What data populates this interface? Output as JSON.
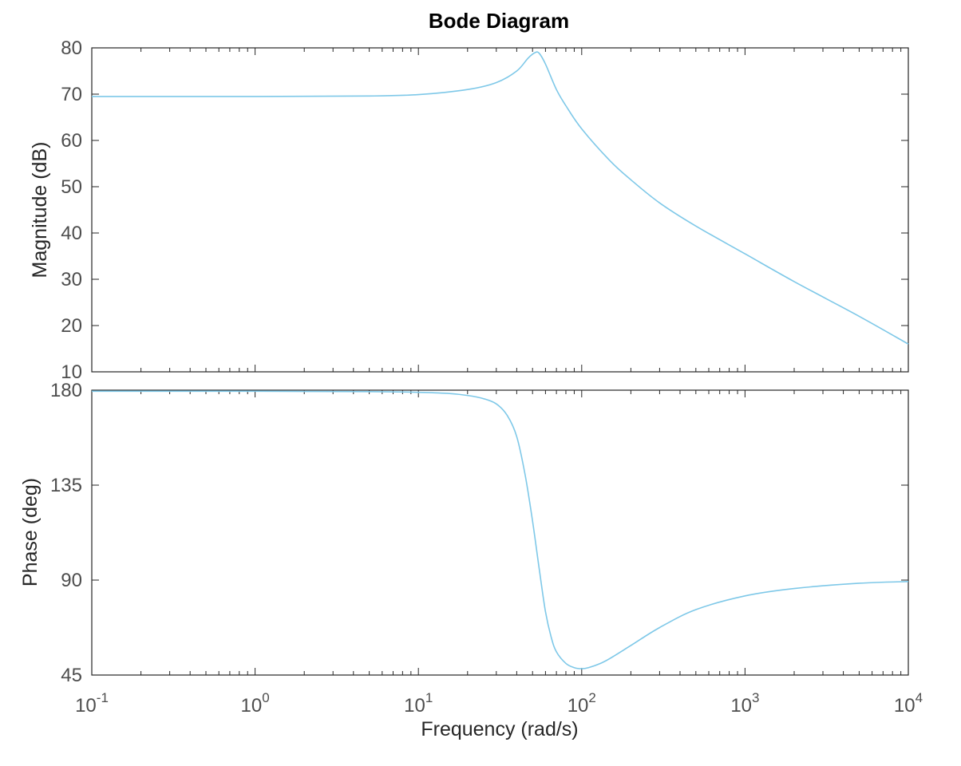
{
  "figure": {
    "title": "Bode Diagram",
    "xlabel": "Frequency  (rad/s)",
    "line_color": "#7ec8e8"
  },
  "chart_data": [
    {
      "type": "line",
      "panel": "magnitude",
      "title": "Bode Diagram",
      "xlabel": "Frequency  (rad/s)",
      "ylabel": "Magnitude (dB)",
      "xscale": "log",
      "xlim": [
        0.1,
        10000
      ],
      "ylim": [
        10,
        80
      ],
      "x_tick_labels": [
        {
          "base": "10",
          "exp": "-1",
          "value": 0.1
        },
        {
          "base": "10",
          "exp": "0",
          "value": 1
        },
        {
          "base": "10",
          "exp": "1",
          "value": 10
        },
        {
          "base": "10",
          "exp": "2",
          "value": 100
        },
        {
          "base": "10",
          "exp": "3",
          "value": 1000
        },
        {
          "base": "10",
          "exp": "4",
          "value": 10000
        }
      ],
      "y_ticks": [
        "10",
        "20",
        "30",
        "40",
        "50",
        "60",
        "70",
        "80"
      ],
      "grid": false,
      "series": [
        {
          "x": [
            0.1,
            1,
            5,
            10,
            20,
            30,
            40,
            47,
            52,
            55,
            60,
            70,
            80,
            100,
            150,
            200,
            300,
            500,
            1000,
            2000,
            5000,
            10000
          ],
          "y": [
            69.5,
            69.5,
            69.6,
            69.9,
            71.0,
            72.5,
            75.0,
            77.8,
            79.0,
            78.8,
            76.5,
            71.0,
            67.5,
            62.5,
            55.5,
            51.5,
            46.5,
            41.5,
            35.5,
            29.5,
            22.0,
            16.0
          ]
        }
      ]
    },
    {
      "type": "line",
      "panel": "phase",
      "ylabel": "Phase (deg)",
      "xscale": "log",
      "xlim": [
        0.1,
        10000
      ],
      "ylim": [
        45,
        180
      ],
      "y_ticks": [
        "45",
        "90",
        "135",
        "180"
      ],
      "grid": false,
      "series": [
        {
          "x": [
            0.1,
            1,
            5,
            10,
            15,
            20,
            25,
            30,
            35,
            40,
            45,
            50,
            55,
            60,
            65,
            70,
            80,
            90,
            100,
            110,
            130,
            150,
            200,
            300,
            500,
            1000,
            2000,
            5000,
            10000
          ],
          "y": [
            179.5,
            179.5,
            179.3,
            179.0,
            178.5,
            177.5,
            176.0,
            173.5,
            168.0,
            158.0,
            140.0,
            118.0,
            95.0,
            75.0,
            63.0,
            56.0,
            50.5,
            48.5,
            48.0,
            48.5,
            50.5,
            53.0,
            59.0,
            67.5,
            76.0,
            82.5,
            86.0,
            88.5,
            89.3
          ]
        }
      ]
    }
  ]
}
